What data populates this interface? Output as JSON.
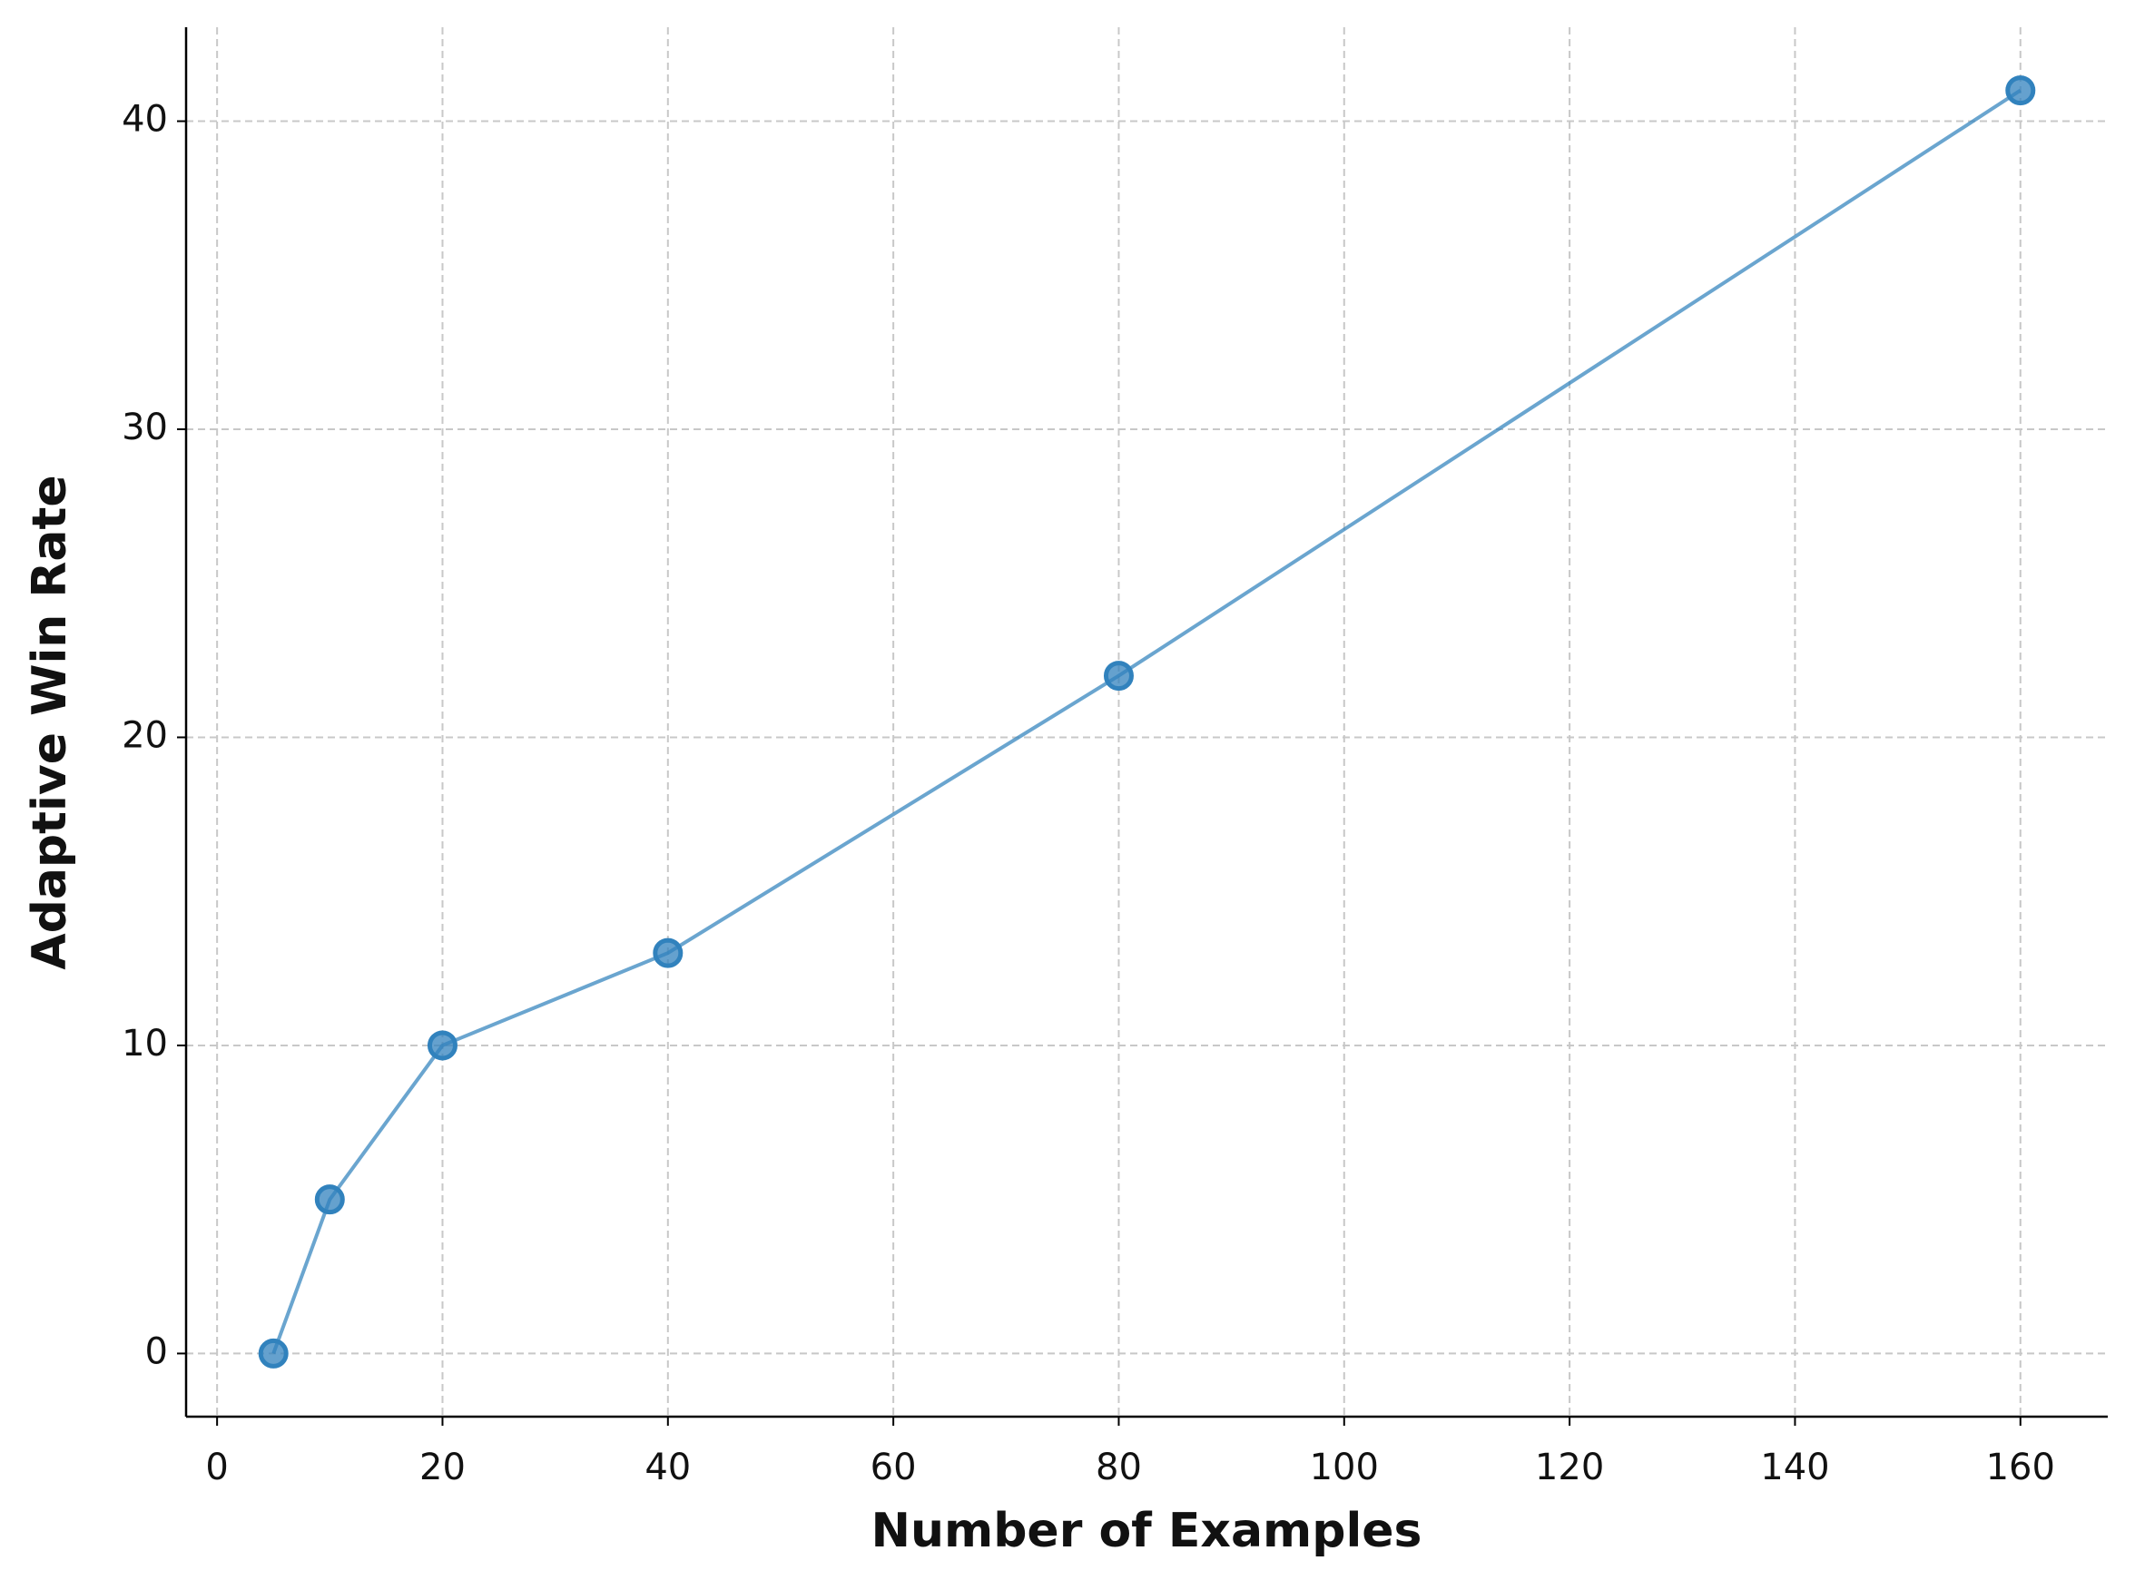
{
  "chart_data": {
    "type": "line",
    "x_label": "Number of Examples",
    "y_label": "Adaptive Win Rate",
    "x": [
      5,
      10,
      20,
      40,
      80,
      160
    ],
    "values": [
      0,
      5,
      10,
      13,
      22,
      41
    ],
    "color": "#3182bd",
    "xlim": [
      -2.75,
      167.75
    ],
    "xticks": [
      0,
      20,
      40,
      60,
      80,
      100,
      120,
      140,
      160
    ],
    "ylim": [
      -2.05,
      43.05
    ],
    "yticks": [
      0,
      10,
      20,
      30,
      40
    ],
    "grid": true
  }
}
